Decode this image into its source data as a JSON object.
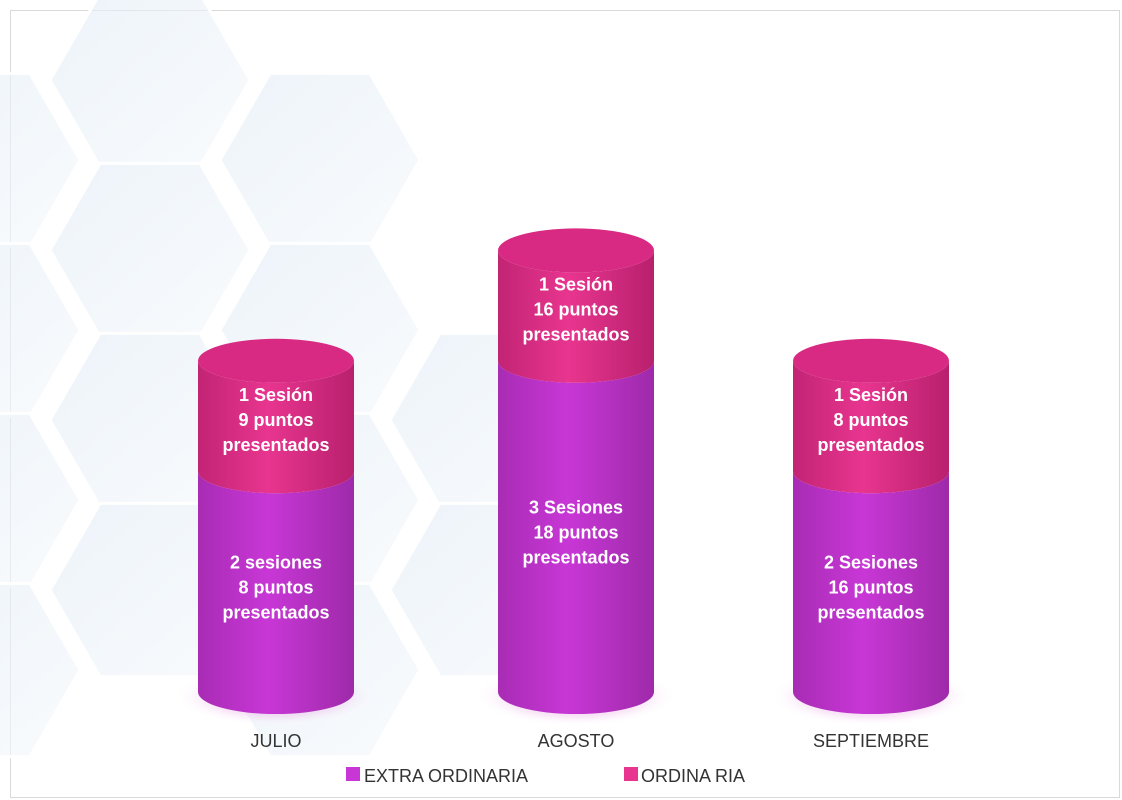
{
  "chart_data": {
    "type": "bar",
    "stacked": true,
    "categories": [
      "JULIO",
      "AGOSTO",
      "SEPTIEMBRE"
    ],
    "ylim": [
      0,
      6
    ],
    "series": [
      {
        "name": "EXTRA ORDINARIA",
        "color": "#c837d6",
        "values": [
          2,
          3,
          2
        ],
        "labels": [
          [
            "2 sesiones",
            "8 puntos",
            "presentados"
          ],
          [
            "3 Sesiones",
            "18 puntos",
            "presentados"
          ],
          [
            "2 Sesiones",
            "16 puntos",
            "presentados"
          ]
        ]
      },
      {
        "name": "ORDINA RIA",
        "color": "#e8358f",
        "values": [
          1,
          1,
          1
        ],
        "labels": [
          [
            "1 Sesión",
            "9 puntos",
            "presentados"
          ],
          [
            "1 Sesión",
            "16 puntos",
            "presentados"
          ],
          [
            "1 Sesión",
            "8 puntos",
            "presentados"
          ]
        ]
      }
    ],
    "legend": {
      "position": "bottom",
      "items": [
        "EXTRA ORDINARIA",
        "ORDINA RIA"
      ]
    },
    "grid": false,
    "title": "",
    "xlabel": "",
    "ylabel": ""
  },
  "legend_labels": {
    "extra": "EXTRA ORDINARIA",
    "ordinaria": "ORDINA RIA"
  }
}
